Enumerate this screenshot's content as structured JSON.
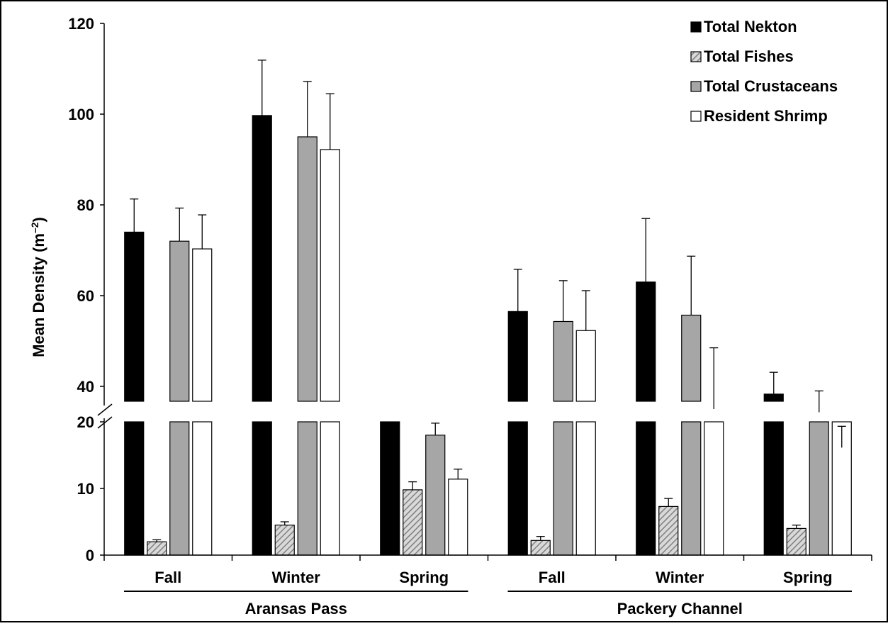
{
  "chart_data": {
    "type": "bar",
    "ylabel": "Mean Density (m",
    "ylabel_sup": "–2",
    "ylabel_close": ")",
    "y_axis_break": true,
    "y_lower_range": [
      0,
      20
    ],
    "y_upper_range": [
      20,
      120
    ],
    "y_ticks_lower": [
      "0",
      "10",
      "20"
    ],
    "y_ticks_upper": [
      "40",
      "60",
      "80",
      "100",
      "120"
    ],
    "legend_position": "top-right",
    "groups": [
      {
        "label": "Aransas Pass",
        "categories": [
          "Fall",
          "Winter",
          "Spring"
        ]
      },
      {
        "label": "Packery Channel",
        "categories": [
          "Fall",
          "Winter",
          "Spring"
        ]
      }
    ],
    "series": [
      {
        "name": "Total Nekton",
        "fill": "#000000",
        "pattern": "solid",
        "values": [
          74.0,
          99.7,
          28.0,
          56.5,
          63.0,
          38.3
        ],
        "errors": [
          7.3,
          12.2,
          2.5,
          9.3,
          14.0,
          4.8
        ]
      },
      {
        "name": "Total Fishes",
        "fill": "#bfbfbf",
        "pattern": "hatch",
        "values": [
          2.0,
          4.5,
          9.8,
          2.2,
          7.3,
          4.0
        ],
        "errors": [
          0.3,
          0.5,
          1.2,
          0.6,
          1.2,
          0.5
        ]
      },
      {
        "name": "Total Crustaceans",
        "fill": "#a6a6a6",
        "pattern": "solid",
        "values": [
          72.0,
          95.0,
          18.0,
          54.3,
          55.7,
          34.3
        ],
        "errors": [
          7.3,
          12.2,
          1.8,
          9.0,
          13.0,
          4.7
        ]
      },
      {
        "name": "Resident Shrimp",
        "fill": "#ffffff",
        "pattern": "solid",
        "values": [
          70.3,
          92.2,
          11.4,
          52.3,
          35.0,
          26.5
        ],
        "errors": [
          7.5,
          12.3,
          1.5,
          8.8,
          13.5,
          4.7
        ]
      }
    ]
  }
}
